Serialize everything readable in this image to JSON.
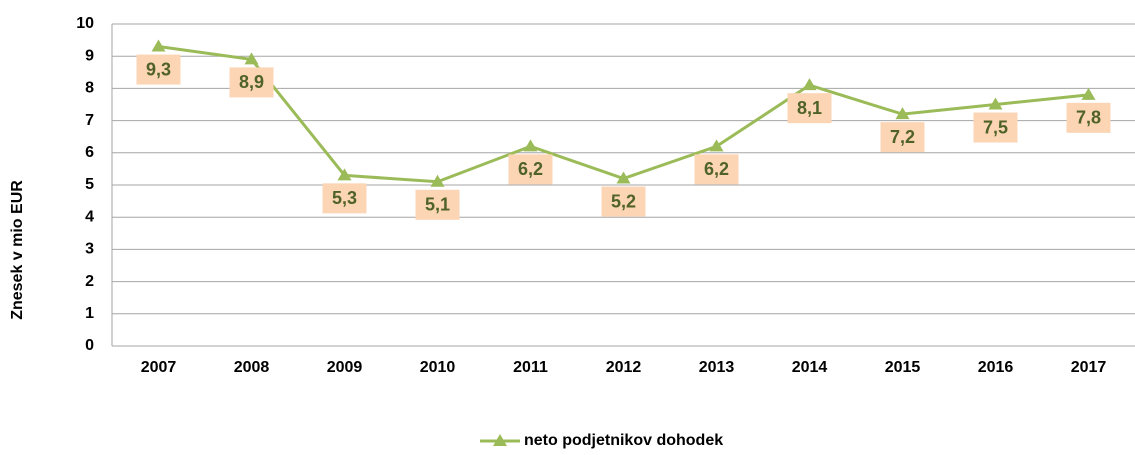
{
  "chart_data": {
    "type": "line",
    "y_label": "Znesek v mio EUR",
    "categories": [
      "2007",
      "2008",
      "2009",
      "2010",
      "2011",
      "2012",
      "2013",
      "2014",
      "2015",
      "2016",
      "2017"
    ],
    "series": [
      {
        "name": "neto podjetnikov dohodek",
        "color": "#9bbb59",
        "values": [
          9.3,
          8.9,
          5.3,
          5.1,
          6.2,
          5.2,
          6.2,
          8.1,
          7.2,
          7.5,
          7.8
        ],
        "value_labels": [
          "9,3",
          "8,9",
          "5,3",
          "5,1",
          "6,2",
          "5,2",
          "6,2",
          "8,1",
          "7,2",
          "7,5",
          "7,8"
        ]
      }
    ],
    "ylim": [
      0,
      10
    ],
    "yticks": [
      0,
      1,
      2,
      3,
      4,
      5,
      6,
      7,
      8,
      9,
      10
    ],
    "grid": true,
    "legend": "bottom"
  }
}
